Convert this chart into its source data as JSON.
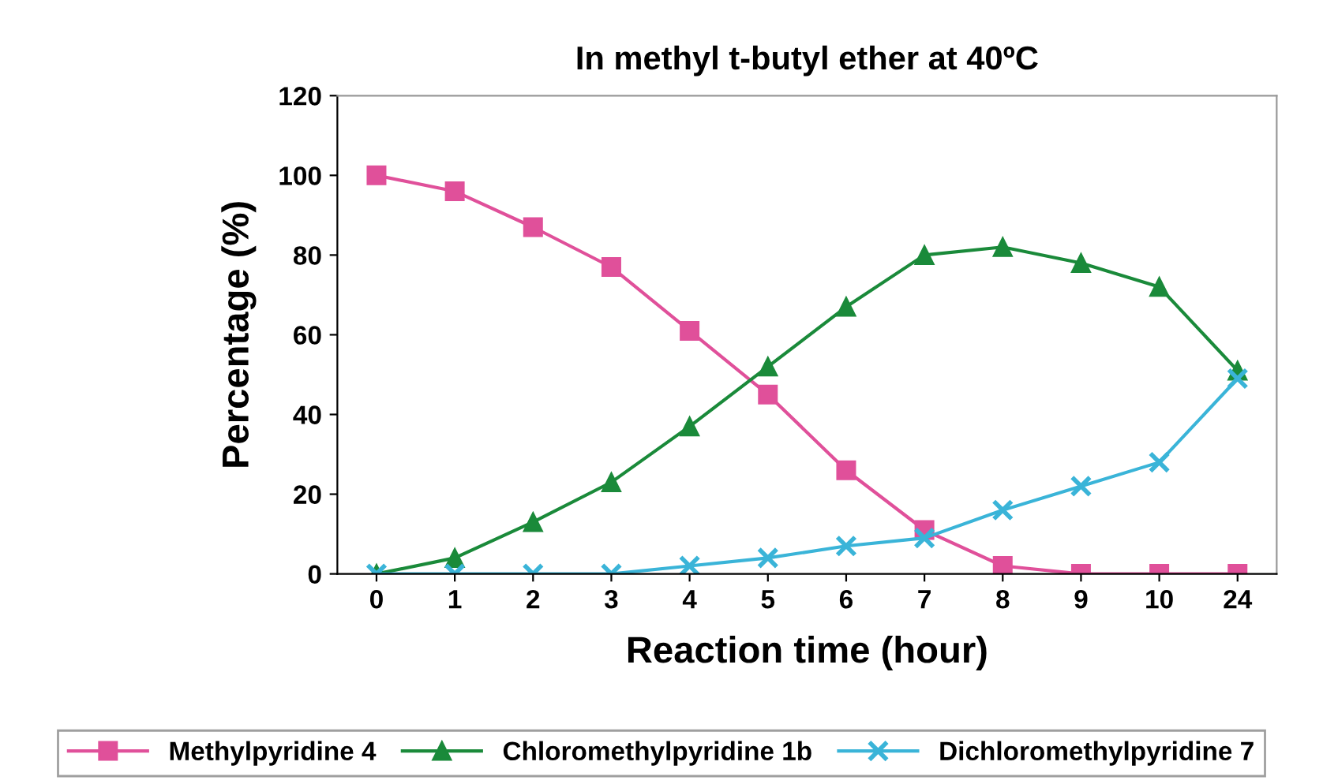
{
  "chart_data": {
    "type": "line",
    "title": "In methyl t-butyl ether at 40ºC",
    "xlabel": "Reaction time (hour)",
    "ylabel": "Percentage (%)",
    "categories": [
      "0",
      "1",
      "2",
      "3",
      "4",
      "5",
      "6",
      "7",
      "8",
      "9",
      "10",
      "24"
    ],
    "series": [
      {
        "name": "Methylpyridine 4",
        "color": "#e0509a",
        "marker": "square",
        "values": [
          100,
          96,
          87,
          77,
          61,
          45,
          26,
          11,
          2,
          0,
          0,
          0
        ]
      },
      {
        "name": "Chloromethylpyridine 1b",
        "color": "#1a8a3a",
        "marker": "triangle",
        "values": [
          0,
          4,
          13,
          23,
          37,
          52,
          67,
          80,
          82,
          78,
          72,
          51
        ]
      },
      {
        "name": "Dichloromethylpyridine 7",
        "color": "#3ab4d8",
        "marker": "cross",
        "values": [
          0,
          0,
          0,
          0,
          2,
          4,
          7,
          9,
          16,
          22,
          28,
          49
        ]
      }
    ],
    "ylim": [
      0,
      120
    ],
    "yticks": [
      0,
      20,
      40,
      60,
      80,
      100,
      120
    ],
    "grid": false,
    "legend": "bottom",
    "line_style": "solid"
  }
}
